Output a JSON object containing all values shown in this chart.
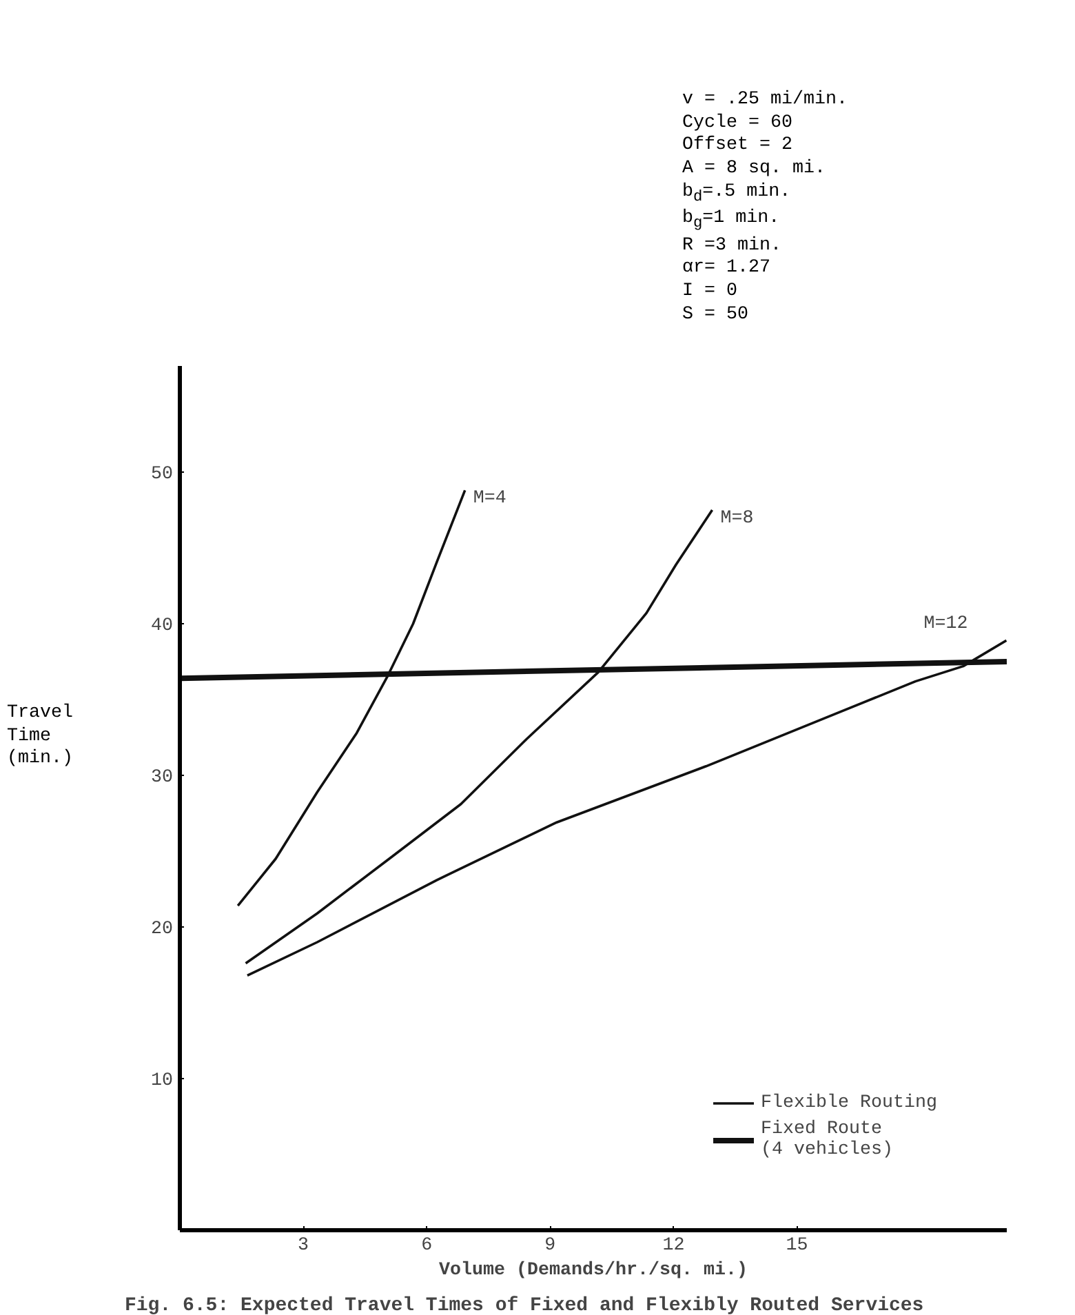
{
  "chart_data": {
    "type": "line",
    "title": "Fig. 6.5:  Expected Travel Times of Fixed and Flexibly Routed Services",
    "xlabel": "Volume (Demands/hr./sq. mi.)",
    "ylabel": "Travel\nTime\n(min.)",
    "xlim": [
      0,
      20.1
    ],
    "ylim": [
      0,
      57
    ],
    "xticks": [
      3,
      6,
      9,
      12,
      15
    ],
    "yticks": [
      10,
      20,
      30,
      40,
      50
    ],
    "grid": false,
    "legend": "bottom right",
    "marker": "none",
    "line_style": "solid",
    "series": [
      {
        "name": "Flexible Routing",
        "color": "#111111",
        "x": [
          1.41,
          2.33,
          3.34,
          4.3,
          5.06,
          5.67,
          6.25,
          6.93
        ],
        "values": [
          21.4,
          24.5,
          28.9,
          32.8,
          36.6,
          40.0,
          44.1,
          48.8
        ]
      },
      {
        "color": "#111111",
        "x": [
          1.6,
          3.34,
          5.09,
          6.83,
          8.43,
          10.17,
          11.34,
          12.06,
          12.94
        ],
        "values": [
          17.6,
          20.9,
          24.5,
          28.1,
          32.4,
          36.8,
          40.7,
          43.9,
          47.5
        ]
      },
      {
        "color": "#111111",
        "x": [
          1.64,
          3.34,
          6.25,
          9.16,
          12.79,
          15.7,
          17.88,
          19.04,
          20.09
        ],
        "values": [
          16.8,
          19.0,
          23.1,
          26.9,
          30.6,
          33.8,
          36.2,
          37.2,
          38.9
        ]
      },
      {
        "name": "Fixed Route\n(4 vehicles)",
        "color": "#111111",
        "x": [
          0,
          20.1
        ],
        "values": [
          36.4,
          37.5
        ]
      }
    ],
    "annotations": [
      "M=4",
      "M=8",
      "M=12",
      "v = .25 mi/min.",
      "Cycle = 60",
      "Offset = 2",
      "A = 8 sq. mi.",
      "b$_{d}$=.5 min.",
      "b$_{g}$=1 min.",
      "R =3 min.",
      "αr= 1.27",
      "I = 0",
      "S = 50"
    ]
  }
}
